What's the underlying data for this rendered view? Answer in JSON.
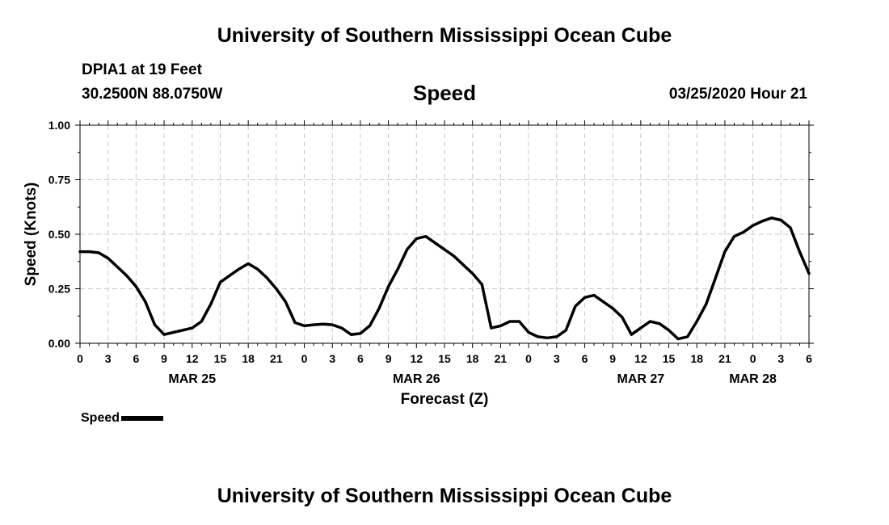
{
  "header": {
    "title": "University of Southern Mississippi Ocean Cube",
    "station": "DPIA1 at 19 Feet",
    "coords": "30.2500N 88.0750W",
    "plot_title": "Speed",
    "timestamp": "03/25/2020 Hour 21"
  },
  "footer": {
    "title": "University of Southern Mississippi Ocean Cube"
  },
  "legend": {
    "label": "Speed"
  },
  "chart_data": {
    "type": "line",
    "title": "Speed",
    "xlabel": "Forecast (Z)",
    "ylabel": "Speed (Knots)",
    "ylim": [
      0,
      1
    ],
    "xlim": [
      0,
      78
    ],
    "x_unit": "hours after 00Z MAR 25",
    "yticks": [
      "0.00",
      "0.25",
      "0.50",
      "0.75",
      "1.00"
    ],
    "xtick_labels": [
      "0",
      "3",
      "6",
      "9",
      "12",
      "15",
      "18",
      "21",
      "0",
      "3",
      "6",
      "9",
      "12",
      "15",
      "18",
      "21",
      "0",
      "3",
      "6",
      "9",
      "12",
      "15",
      "18",
      "21",
      "0",
      "3",
      "6"
    ],
    "date_labels": [
      {
        "label": "MAR 25",
        "at_hour": 12
      },
      {
        "label": "MAR 26",
        "at_hour": 36
      },
      {
        "label": "MAR 27",
        "at_hour": 60
      },
      {
        "label": "MAR 28",
        "at_hour": 72
      }
    ],
    "grid": true,
    "legend_position": "bottom-left",
    "series": [
      {
        "name": "Speed",
        "color": "#000000",
        "x": [
          0,
          1,
          2,
          3,
          4,
          5,
          6,
          7,
          8,
          9,
          10,
          11,
          12,
          13,
          14,
          15,
          16,
          17,
          18,
          19,
          20,
          21,
          22,
          23,
          24,
          25,
          26,
          27,
          28,
          29,
          30,
          31,
          32,
          33,
          34,
          35,
          36,
          37,
          38,
          39,
          40,
          41,
          42,
          43,
          44,
          45,
          46,
          47,
          48,
          49,
          50,
          51,
          52,
          53,
          54,
          55,
          56,
          57,
          58,
          59,
          60,
          61,
          62,
          63,
          64,
          65,
          66,
          67,
          68,
          69,
          70,
          71,
          72,
          73,
          74,
          75,
          76,
          77,
          78
        ],
        "y": [
          0.42,
          0.42,
          0.415,
          0.39,
          0.35,
          0.31,
          0.26,
          0.19,
          0.085,
          0.04,
          0.05,
          0.06,
          0.07,
          0.1,
          0.18,
          0.28,
          0.31,
          0.34,
          0.365,
          0.34,
          0.3,
          0.25,
          0.19,
          0.095,
          0.08,
          0.085,
          0.088,
          0.085,
          0.07,
          0.04,
          0.045,
          0.08,
          0.16,
          0.26,
          0.34,
          0.43,
          0.48,
          0.49,
          0.46,
          0.43,
          0.4,
          0.36,
          0.32,
          0.27,
          0.07,
          0.08,
          0.1,
          0.1,
          0.05,
          0.03,
          0.025,
          0.03,
          0.06,
          0.17,
          0.21,
          0.22,
          0.19,
          0.16,
          0.12,
          0.04,
          0.07,
          0.1,
          0.09,
          0.06,
          0.02,
          0.03,
          0.1,
          0.18,
          0.3,
          0.42,
          0.49,
          0.51,
          0.54,
          0.56,
          0.575,
          0.565,
          0.53,
          0.42,
          0.32
        ]
      }
    ]
  }
}
